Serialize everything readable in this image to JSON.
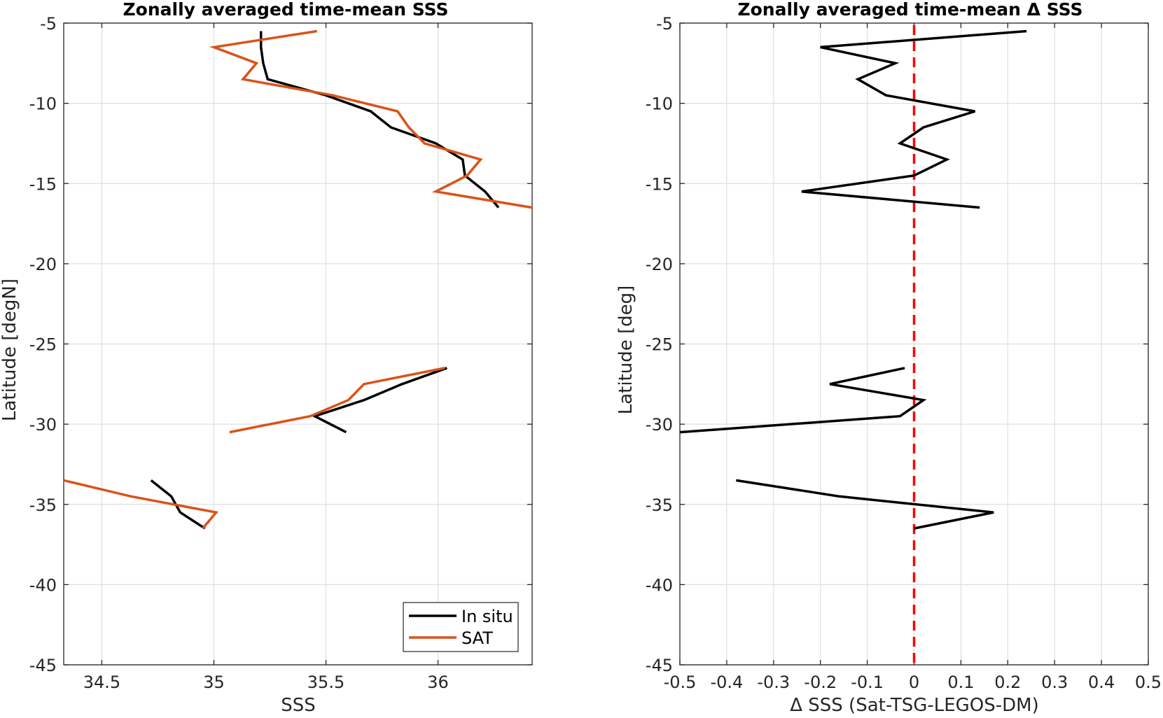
{
  "chart_data": [
    {
      "type": "line",
      "title": "Zonally averaged time-mean SSS",
      "xlabel": "SSS",
      "ylabel": "Latitude [degN]",
      "xlim": [
        34.33,
        36.42
      ],
      "ylim": [
        -45,
        -5
      ],
      "xticks": [
        34.5,
        35,
        35.5,
        36
      ],
      "xtick_labels": [
        "34.5",
        "35",
        "35.5",
        "36"
      ],
      "yticks": [
        -45,
        -40,
        -35,
        -30,
        -25,
        -20,
        -15,
        -10,
        -5
      ],
      "ytick_labels": [
        "-45",
        "-40",
        "-35",
        "-30",
        "-25",
        "-20",
        "-15",
        "-10",
        "-5"
      ],
      "grid": true,
      "legend": "bottom-right",
      "series": [
        {
          "name": "In situ",
          "color": "#000000",
          "segments": [
            [
              [
                35.21,
                -5.5
              ],
              [
                35.21,
                -6.5
              ],
              [
                35.22,
                -7.5
              ],
              [
                35.24,
                -8.5
              ],
              [
                35.5,
                -9.5
              ],
              [
                35.7,
                -10.5
              ],
              [
                35.79,
                -11.5
              ],
              [
                35.99,
                -12.5
              ],
              [
                36.11,
                -13.5
              ],
              [
                36.12,
                -14.5
              ],
              [
                36.21,
                -15.5
              ],
              [
                36.27,
                -16.5
              ]
            ],
            [
              [
                36.04,
                -26.5
              ],
              [
                35.84,
                -27.5
              ],
              [
                35.67,
                -28.5
              ],
              [
                35.45,
                -29.5
              ],
              [
                35.59,
                -30.5
              ]
            ],
            [
              [
                34.72,
                -33.5
              ],
              [
                34.81,
                -34.5
              ],
              [
                34.85,
                -35.5
              ],
              [
                34.96,
                -36.5
              ]
            ]
          ]
        },
        {
          "name": "SAT",
          "color": "#d95319",
          "segments": [
            [
              [
                35.46,
                -5.5
              ],
              [
                35.0,
                -6.5
              ],
              [
                35.19,
                -7.5
              ],
              [
                35.13,
                -8.5
              ],
              [
                35.53,
                -9.5
              ],
              [
                35.82,
                -10.5
              ],
              [
                35.87,
                -11.5
              ],
              [
                35.94,
                -12.5
              ],
              [
                36.19,
                -13.5
              ],
              [
                36.13,
                -14.5
              ],
              [
                35.99,
                -15.5
              ],
              [
                36.42,
                -16.5
              ]
            ],
            [
              [
                36.03,
                -26.5
              ],
              [
                35.67,
                -27.5
              ],
              [
                35.6,
                -28.5
              ],
              [
                35.43,
                -29.5
              ],
              [
                35.07,
                -30.5
              ]
            ],
            [
              [
                34.33,
                -33.5
              ],
              [
                34.63,
                -34.5
              ],
              [
                35.01,
                -35.5
              ],
              [
                34.95,
                -36.5
              ]
            ]
          ]
        }
      ]
    },
    {
      "type": "line",
      "title": "Zonally averaged time-mean Δ SSS",
      "xlabel": "Δ SSS (Sat-TSG-LEGOS-DM)",
      "ylabel": "Latitude [deg]",
      "xlim": [
        -0.5,
        0.5
      ],
      "ylim": [
        -45,
        -5
      ],
      "xticks": [
        -0.5,
        -0.4,
        -0.3,
        -0.2,
        -0.1,
        0,
        0.1,
        0.2,
        0.3,
        0.4,
        0.5
      ],
      "xtick_labels": [
        "-0.5",
        "-0.4",
        "-0.3",
        "-0.2",
        "-0.1",
        "0",
        "0.1",
        "0.2",
        "0.3",
        "0.4",
        "0.5"
      ],
      "yticks": [
        -45,
        -40,
        -35,
        -30,
        -25,
        -20,
        -15,
        -10,
        -5
      ],
      "ytick_labels": [
        "-45",
        "-40",
        "-35",
        "-30",
        "-25",
        "-20",
        "-15",
        "-10",
        "-5"
      ],
      "grid": true,
      "reference_line": {
        "x": 0,
        "color": "#ff0000",
        "style": "dashed"
      },
      "series": [
        {
          "color": "#000000",
          "segments": [
            [
              [
                0.24,
                -5.5
              ],
              [
                -0.2,
                -6.5
              ],
              [
                -0.04,
                -7.5
              ],
              [
                -0.12,
                -8.5
              ],
              [
                -0.06,
                -9.5
              ],
              [
                0.13,
                -10.5
              ],
              [
                0.02,
                -11.5
              ],
              [
                -0.03,
                -12.5
              ],
              [
                0.07,
                -13.5
              ],
              [
                0.0,
                -14.5
              ],
              [
                -0.24,
                -15.5
              ],
              [
                0.14,
                -16.5
              ]
            ],
            [
              [
                -0.02,
                -26.5
              ],
              [
                -0.18,
                -27.5
              ],
              [
                0.02,
                -28.5
              ],
              [
                -0.03,
                -29.5
              ],
              [
                -0.5,
                -30.5
              ]
            ],
            [
              [
                -0.38,
                -33.5
              ],
              [
                -0.16,
                -34.5
              ],
              [
                0.17,
                -35.5
              ],
              [
                0.0,
                -36.5
              ]
            ]
          ]
        }
      ]
    }
  ]
}
